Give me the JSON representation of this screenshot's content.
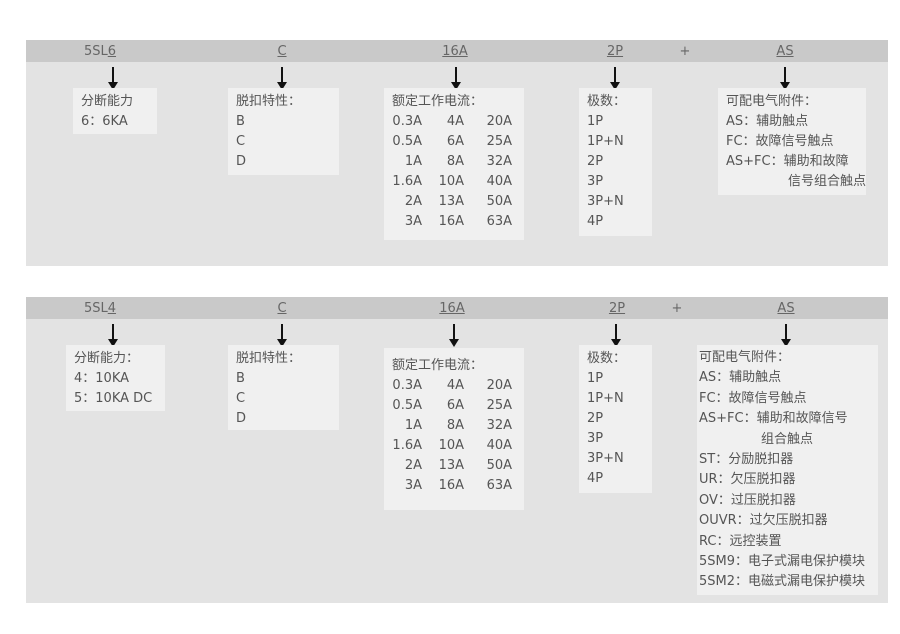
{
  "rows": [
    {
      "model_prefix": "5SL",
      "model_digit": "6",
      "trip": "C",
      "current": "16A",
      "poles": "2P",
      "plus": "+",
      "accessory": "AS",
      "breaking": {
        "title": "分断能力",
        "items": [
          "6：6KA"
        ]
      },
      "trip_box": {
        "title": "脱扣特性：",
        "items": [
          "B",
          "C",
          "D"
        ]
      },
      "current_box": {
        "title": "额定工作电流：",
        "rows": [
          [
            "0.3A",
            "4A",
            "20A"
          ],
          [
            "0.5A",
            "6A",
            "25A"
          ],
          [
            "1A",
            "8A",
            "32A"
          ],
          [
            "1.6A",
            "10A",
            "40A"
          ],
          [
            "2A",
            "13A",
            "50A"
          ],
          [
            "3A",
            "16A",
            "63A"
          ]
        ]
      },
      "poles_box": {
        "title": "极数：",
        "items": [
          "1P",
          "1P+N",
          "2P",
          "3P",
          "3P+N",
          "4P"
        ]
      },
      "acc_box": {
        "title": "可配电气附件：",
        "items": [
          "AS：辅助触点",
          "FC：故障信号触点",
          "AS+FC：辅助和故障",
          "信号组合触点"
        ]
      }
    },
    {
      "model_prefix": "5SL",
      "model_digit": "4",
      "trip": "C",
      "current": "16A",
      "poles": "2P",
      "plus": "+",
      "accessory": "AS",
      "breaking": {
        "title": "分断能力：",
        "items": [
          "4：10KA",
          "5：10KA DC"
        ]
      },
      "trip_box": {
        "title": "脱扣特性：",
        "items": [
          "B",
          "C",
          "D"
        ]
      },
      "current_box": {
        "title": "额定工作电流：",
        "rows": [
          [
            "0.3A",
            "4A",
            "20A"
          ],
          [
            "0.5A",
            "6A",
            "25A"
          ],
          [
            "1A",
            "8A",
            "32A"
          ],
          [
            "1.6A",
            "10A",
            "40A"
          ],
          [
            "2A",
            "13A",
            "50A"
          ],
          [
            "3A",
            "16A",
            "63A"
          ]
        ]
      },
      "poles_box": {
        "title": "极数：",
        "items": [
          "1P",
          "1P+N",
          "2P",
          "3P",
          "3P+N",
          "4P"
        ]
      },
      "acc_box": {
        "title": "可配电气附件：",
        "items": [
          "AS：辅助触点",
          "FC：故障信号触点",
          "AS+FC：辅助和故障信号",
          "组合触点",
          "ST：分励脱扣器",
          "UR：欠压脱扣器",
          "OV：过压脱扣器",
          "OUVR：过欠压脱扣器",
          "RC：远控装置",
          "5SM9：电子式漏电保护模块",
          "5SM2：电磁式漏电保护模块"
        ]
      }
    }
  ]
}
